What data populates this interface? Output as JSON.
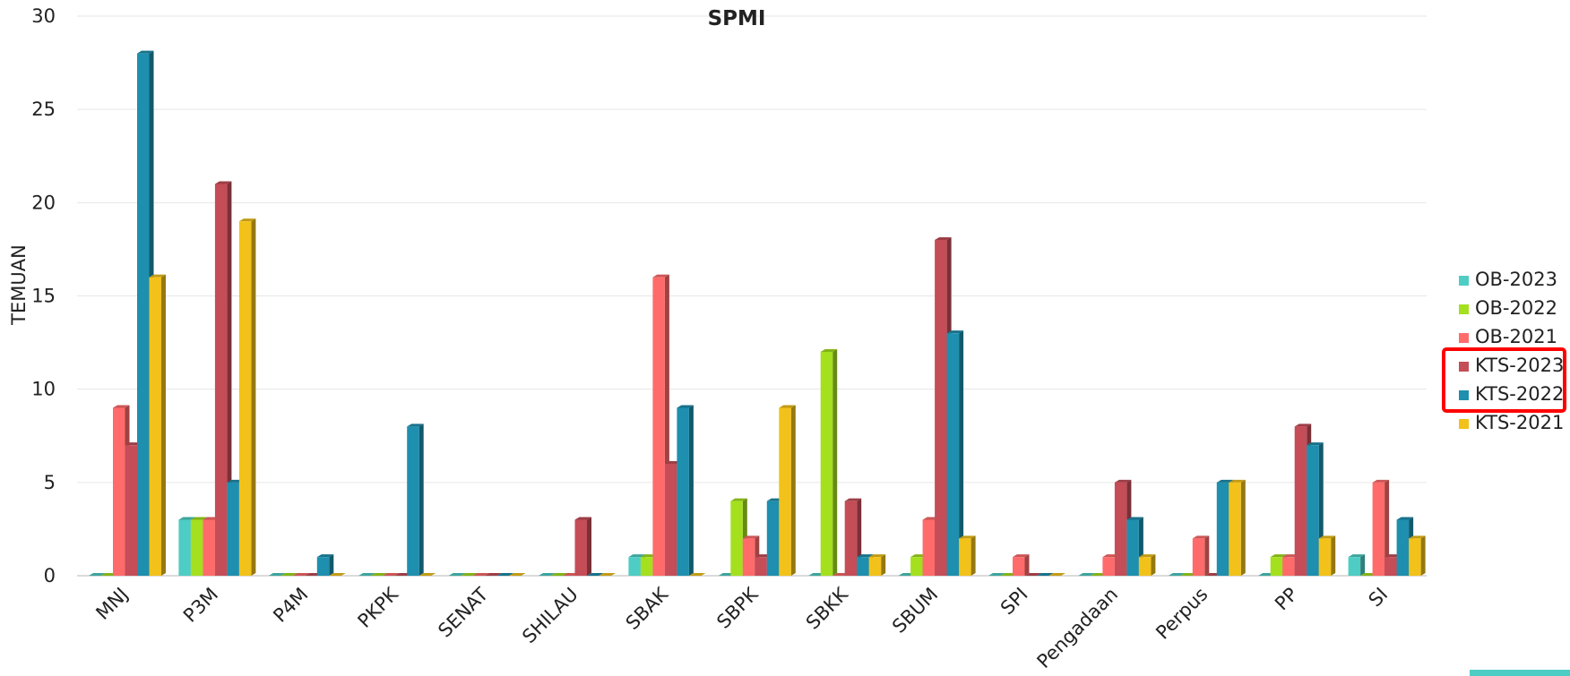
{
  "chart_data": {
    "type": "bar",
    "title": "SPMI",
    "xlabel": "",
    "ylabel": "TEMUAN",
    "ylim": [
      0,
      30
    ],
    "yticks": [
      0,
      5,
      10,
      15,
      20,
      25,
      30
    ],
    "grid": true,
    "legend_position": "right",
    "legend_highlight": [
      "KTS-2023",
      "KTS-2022"
    ],
    "highlight_color": "#ff0000",
    "categories": [
      "MNJ",
      "P3M",
      "P4M",
      "PKPK",
      "SENAT",
      "SHILAU",
      "SBAK",
      "SBPK",
      "SBKK",
      "SBUM",
      "SPI",
      "Pengadaan",
      "Perpus",
      "PP",
      "SI"
    ],
    "series": [
      {
        "name": "OB-2023",
        "color": "#4ecdc4",
        "values": [
          0,
          3,
          0,
          0,
          0,
          0,
          1,
          0,
          0,
          0,
          0,
          0,
          0,
          0,
          1
        ]
      },
      {
        "name": "OB-2022",
        "color": "#a4e01e",
        "values": [
          0,
          3,
          0,
          0,
          0,
          0,
          1,
          4,
          12,
          1,
          0,
          0,
          0,
          1,
          0
        ]
      },
      {
        "name": "OB-2021",
        "color": "#ff6b6b",
        "values": [
          9,
          3,
          0,
          0,
          0,
          0,
          16,
          2,
          0,
          3,
          1,
          1,
          2,
          1,
          5
        ]
      },
      {
        "name": "KTS-2023",
        "color": "#c44d58",
        "values": [
          7,
          21,
          0,
          0,
          0,
          3,
          6,
          1,
          4,
          18,
          0,
          5,
          0,
          8,
          1
        ]
      },
      {
        "name": "KTS-2022",
        "color": "#1e8fae",
        "values": [
          28,
          5,
          1,
          8,
          0,
          0,
          9,
          4,
          1,
          13,
          0,
          3,
          5,
          7,
          3
        ]
      },
      {
        "name": "KTS-2021",
        "color": "#f2c21b",
        "values": [
          16,
          19,
          0,
          0,
          0,
          0,
          0,
          9,
          1,
          2,
          0,
          1,
          5,
          2,
          2
        ]
      }
    ]
  }
}
